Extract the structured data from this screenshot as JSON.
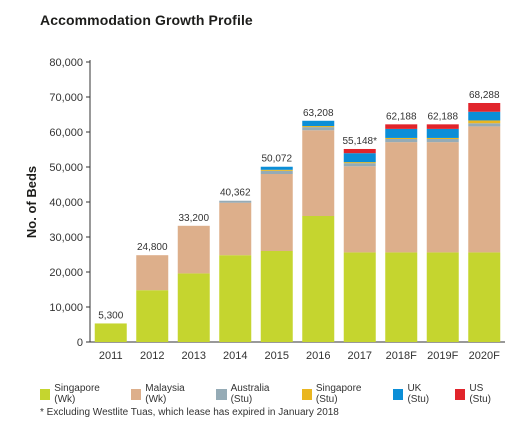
{
  "chart_data": {
    "type": "bar",
    "stacked": true,
    "title": "Accommodation Growth Profile",
    "ylabel": "No. of Beds",
    "xlabel": "",
    "ylim": [
      0,
      80000
    ],
    "yticks": [
      0,
      10000,
      20000,
      30000,
      40000,
      50000,
      60000,
      70000,
      80000
    ],
    "ytick_labels": [
      "0",
      "10,000",
      "20,000",
      "30,000",
      "40,000",
      "50,000",
      "60,000",
      "70,000",
      "80,000"
    ],
    "categories": [
      "2011",
      "2012",
      "2013",
      "2014",
      "2015",
      "2016",
      "2017",
      "2018F",
      "2019F",
      "2020F"
    ],
    "totals_labels": [
      "5,300",
      "24,800",
      "33,200",
      "40,362",
      "50,072",
      "63,208",
      "55,148*",
      "62,188",
      "62,188",
      "68,288"
    ],
    "grid": false,
    "legend_position": "bottom",
    "series": [
      {
        "name": "Singapore (Wk)",
        "color": "#c5d52f",
        "values": [
          5300,
          14800,
          19600,
          24800,
          26000,
          36000,
          25600,
          25600,
          25600,
          25600
        ]
      },
      {
        "name": "Malaysia (Wk)",
        "color": "#ddaf8b",
        "values": [
          0,
          10000,
          13600,
          15000,
          22000,
          24500,
          24600,
          31500,
          31500,
          36000
        ]
      },
      {
        "name": "Australia (Stu)",
        "color": "#95abb6",
        "values": [
          0,
          0,
          0,
          562,
          900,
          900,
          900,
          900,
          900,
          900
        ]
      },
      {
        "name": "Singapore (Stu)",
        "color": "#eab620",
        "values": [
          0,
          0,
          0,
          0,
          300,
          300,
          300,
          300,
          300,
          800
        ]
      },
      {
        "name": "UK (Stu)",
        "color": "#0b8ed7",
        "values": [
          0,
          0,
          0,
          0,
          872,
          1508,
          2548,
          2588,
          2588,
          2488
        ]
      },
      {
        "name": "US (Stu)",
        "color": "#e1242b",
        "values": [
          0,
          0,
          0,
          0,
          0,
          0,
          1200,
          1300,
          1300,
          2500
        ]
      }
    ],
    "footnote": "* Excluding Westlite Tuas, which lease has expired in January 2018"
  }
}
